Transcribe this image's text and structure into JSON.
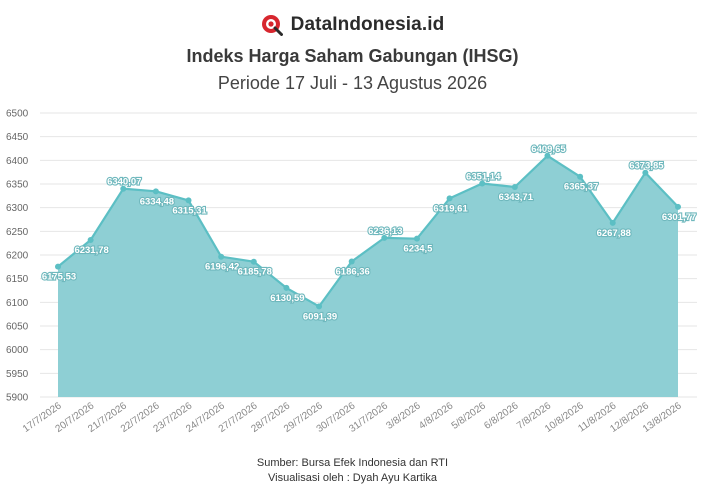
{
  "brand": {
    "name": "DataIndonesia.id",
    "logo_icon": "magnifier-logo-icon",
    "accent": "#d7262e"
  },
  "footer": {
    "source": "Sumber: Bursa Efek Indonesia dan RTI",
    "credit": "Visualisasi oleh : Dyah Ayu Kartika"
  },
  "chart_data": {
    "type": "area",
    "title": "Indeks Harga Saham Gabungan (IHSG)",
    "subtitle": "Periode 17 Juli - 13 Agustus 2026",
    "xlabel": "",
    "ylabel": "",
    "ylim": [
      5900,
      6500
    ],
    "yticks": [
      5900,
      5950,
      6000,
      6050,
      6100,
      6150,
      6200,
      6250,
      6300,
      6350,
      6400,
      6450,
      6500
    ],
    "grid": true,
    "legend": "none",
    "colors": {
      "fill": "#8ecfd4",
      "line": "#5cbfc4",
      "label": "#ffffff"
    },
    "categories": [
      "17/7/2026",
      "20/7/2026",
      "21/7/2026",
      "22/7/2026",
      "23/7/2026",
      "24/7/2026",
      "27/7/2026",
      "28/7/2026",
      "29/7/2026",
      "30/7/2026",
      "31/7/2026",
      "3/8/2026",
      "4/8/2026",
      "5/8/2026",
      "6/8/2026",
      "7/8/2026",
      "10/8/2026",
      "11/8/2026",
      "12/8/2026",
      "13/8/2026"
    ],
    "values": [
      6175.53,
      6231.78,
      6340.07,
      6334.48,
      6315.31,
      6196.42,
      6185.78,
      6130.59,
      6091.39,
      6186.36,
      6236.13,
      6234.5,
      6319.61,
      6351.14,
      6343.71,
      6409.65,
      6365.37,
      6267.88,
      6373.85,
      6301.77
    ],
    "data_labels": [
      "6175,53",
      "6231,78",
      "6340,07",
      "6334,48",
      "6315,31",
      "6196,42",
      "6185,78",
      "6130,59",
      "6091,39",
      "6186,36",
      "6236,13",
      "6234,5",
      "6319,61",
      "6351,14",
      "6343,71",
      "6409,65",
      "6365,37",
      "6267,88",
      "6373,85",
      "6301,77"
    ]
  }
}
